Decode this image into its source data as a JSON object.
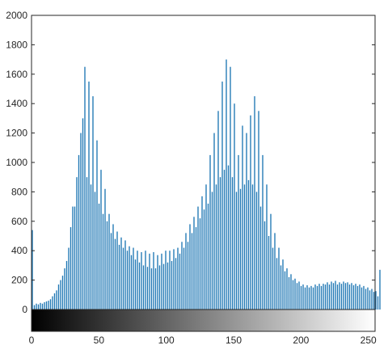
{
  "chart_data": {
    "type": "bar",
    "title": "",
    "xlabel": "",
    "ylabel": "",
    "xlim": [
      0,
      255
    ],
    "ylim": [
      0,
      2000
    ],
    "x_ticks": [
      0,
      50,
      100,
      150,
      200,
      250
    ],
    "y_ticks": [
      0,
      200,
      400,
      600,
      800,
      1000,
      1200,
      1400,
      1600,
      1800,
      2000
    ],
    "grid": false,
    "legend": "none",
    "bar_color": "#1f77b4",
    "colorbar": {
      "kind": "grayscale",
      "from": "#000000",
      "to": "#ffffff"
    },
    "series": [
      {
        "values": [
          540,
          30,
          40,
          35,
          45,
          40,
          50,
          55,
          60,
          70,
          90,
          110,
          130,
          170,
          200,
          230,
          280,
          330,
          420,
          560,
          700,
          700,
          900,
          1050,
          1200,
          1300,
          1650,
          900,
          1550,
          850,
          1450,
          800,
          1150,
          720,
          950,
          650,
          820,
          600,
          650,
          520,
          580,
          480,
          530,
          440,
          490,
          420,
          470,
          400,
          430,
          370,
          420,
          340,
          400,
          320,
          390,
          300,
          400,
          290,
          380,
          280,
          390,
          280,
          370,
          300,
          380,
          310,
          400,
          320,
          400,
          330,
          410,
          350,
          420,
          380,
          460,
          420,
          520,
          460,
          580,
          520,
          630,
          560,
          700,
          620,
          770,
          680,
          850,
          720,
          1050,
          800,
          1200,
          850,
          1350,
          900,
          1550,
          950,
          1700,
          980,
          1650,
          900,
          1400,
          800,
          1050,
          820,
          1250,
          850,
          1200,
          880,
          1320,
          850,
          1450,
          800,
          1350,
          700,
          1050,
          600,
          850,
          500,
          650,
          420,
          520,
          350,
          420,
          300,
          340,
          260,
          280,
          220,
          240,
          200,
          210,
          180,
          190,
          160,
          170,
          150,
          165,
          150,
          160,
          150,
          170,
          160,
          175,
          160,
          175,
          170,
          185,
          170,
          190,
          180,
          195,
          170,
          185,
          175,
          190,
          180,
          185,
          170,
          180,
          165,
          175,
          160,
          170,
          150,
          160,
          140,
          150,
          130,
          140,
          120,
          125,
          90,
          270
        ]
      }
    ],
    "data_note_x_start": 0,
    "data_note_x_step": 1.5
  }
}
